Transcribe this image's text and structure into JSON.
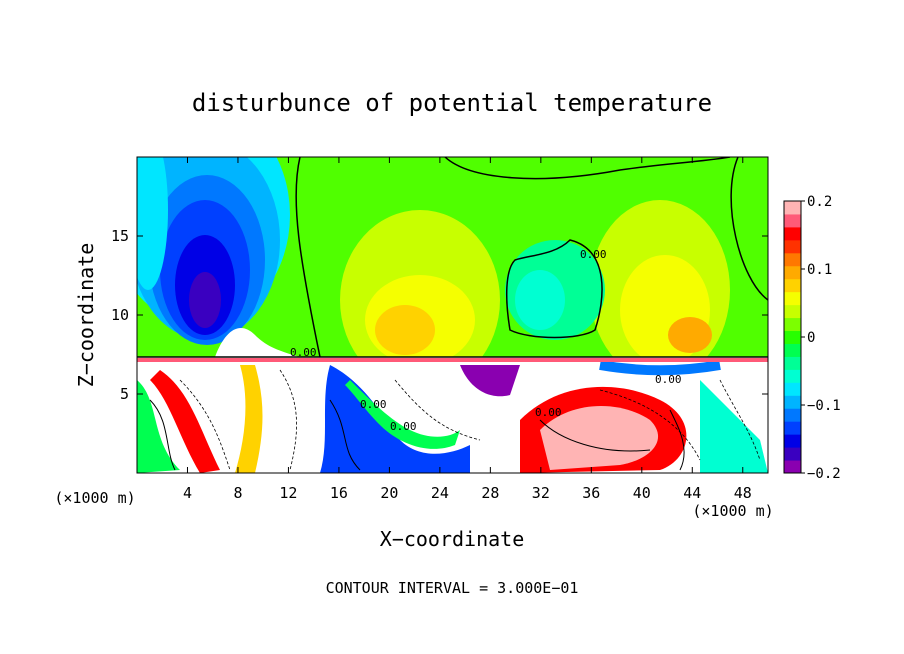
{
  "chart_data": {
    "type": "heatmap",
    "title": "disturbunce of potential temperature",
    "xlabel": "X−coordinate",
    "ylabel": "Z−coordinate",
    "x_unit_left": "(×1000 m)",
    "x_unit_right": "(×1000 m)",
    "xlim": [
      0,
      50
    ],
    "ylim": [
      0,
      20
    ],
    "x_ticks": [
      4,
      8,
      12,
      16,
      20,
      24,
      28,
      32,
      36,
      40,
      44,
      48
    ],
    "y_ticks": [
      5,
      10,
      15
    ],
    "x_tick_labels": [
      "4",
      "8",
      "12",
      "16",
      "20",
      "24",
      "28",
      "32",
      "36",
      "40",
      "44",
      "48"
    ],
    "y_tick_labels": [
      "5",
      "10",
      "15"
    ],
    "colorbar": {
      "range": [
        -0.2,
        0.2
      ],
      "tick_values": [
        0.2,
        0.1,
        0,
        -0.1,
        -0.2
      ],
      "tick_labels": [
        "0.2",
        "0.1",
        "0",
        "−0.1",
        "−0.2"
      ]
    },
    "contour_label": "0.00",
    "footer": "CONTOUR INTERVAL = 3.000E−01",
    "colors": [
      "#8a00b0",
      "#3a00c0",
      "#0000e6",
      "#0040ff",
      "#0078ff",
      "#00b4ff",
      "#00e6ff",
      "#00ffd2",
      "#00ff96",
      "#00ff50",
      "#28ff00",
      "#7cff00",
      "#c8ff00",
      "#f5ff00",
      "#ffd200",
      "#ffaa00",
      "#ff7800",
      "#ff3200",
      "#ff0000",
      "#ff5a78",
      "#ffb4b4"
    ]
  }
}
